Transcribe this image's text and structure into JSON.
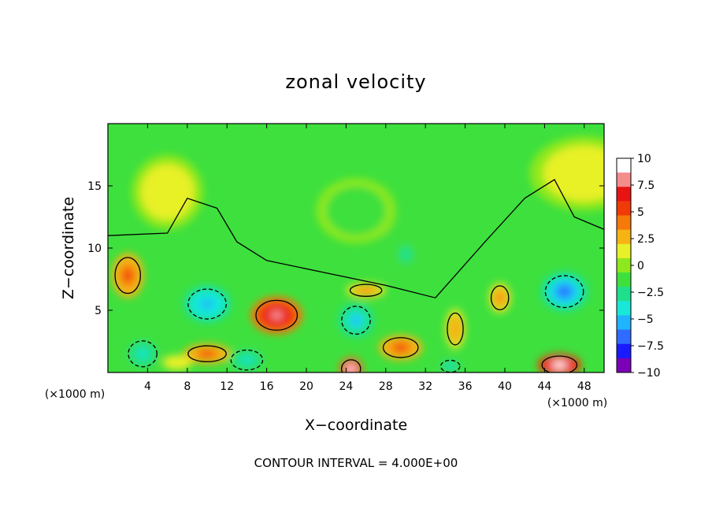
{
  "chart_data": {
    "type": "heatmap",
    "title": "zonal velocity",
    "xlabel": "X−coordinate",
    "ylabel": "Z−coordinate",
    "x_units_left": "(×1000 m)",
    "x_units_right": "(×1000 m)",
    "xlim": [
      0,
      50
    ],
    "ylim": [
      0,
      20
    ],
    "x_ticks": [
      4,
      8,
      12,
      16,
      20,
      24,
      28,
      32,
      36,
      40,
      44,
      48
    ],
    "x_tick_labels": [
      "4",
      "8",
      "12",
      "16",
      "20",
      "24",
      "28",
      "32",
      "36",
      "40",
      "44",
      "48"
    ],
    "y_ticks": [
      5,
      10,
      15
    ],
    "y_tick_labels": [
      "5",
      "10",
      "15"
    ],
    "colorbar": {
      "min": -10,
      "max": 10,
      "tick_values": [
        10,
        7.5,
        5,
        2.5,
        0,
        -2.5,
        -5,
        -7.5,
        -10
      ],
      "tick_labels": [
        "10",
        "7.5",
        "5",
        "2.5",
        "0",
        "−2.5",
        "−5",
        "−7.5",
        "−10"
      ],
      "colors": [
        "#7b00b8",
        "#1a1aff",
        "#2f6bff",
        "#1fb4ff",
        "#19e8d8",
        "#1ee08c",
        "#3ee03e",
        "#8ee81e",
        "#e8f028",
        "#f5b414",
        "#f57a0a",
        "#f03a08",
        "#e81414",
        "#f58c8c",
        "#ffffff"
      ]
    },
    "features": [
      {
        "x": 6,
        "z": 14.5,
        "value": 1.5
      },
      {
        "x": 25,
        "z": 13,
        "value": -1.5
      },
      {
        "x": 30,
        "z": 9.5,
        "value": -2.5
      },
      {
        "x": 48,
        "z": 16,
        "value": 1.5
      },
      {
        "x": 2,
        "z": 7.8,
        "value": 5.5
      },
      {
        "x": 10,
        "z": 5.5,
        "value": -6.0
      },
      {
        "x": 17,
        "z": 4.6,
        "value": 8.5
      },
      {
        "x": 10,
        "z": 1.5,
        "value": 5.5
      },
      {
        "x": 25,
        "z": 4.2,
        "value": -5.5
      },
      {
        "x": 26,
        "z": 6.6,
        "value": 4.0
      },
      {
        "x": 29.5,
        "z": 2.0,
        "value": 5.5
      },
      {
        "x": 24.5,
        "z": 0.3,
        "value": 10.5
      },
      {
        "x": 35,
        "z": 3.5,
        "value": 3.5
      },
      {
        "x": 39.5,
        "z": 6.0,
        "value": 4.5
      },
      {
        "x": 46,
        "z": 6.5,
        "value": -7.5
      },
      {
        "x": 45.5,
        "z": 0.6,
        "value": 11.0
      },
      {
        "x": 3.5,
        "z": 1.5,
        "value": -4.0
      },
      {
        "x": 14,
        "z": 1.0,
        "value": -4.0
      },
      {
        "x": 34.5,
        "z": 0.5,
        "value": -4.5
      },
      {
        "x": 7,
        "z": 0.8,
        "value": 2.0
      }
    ]
  },
  "footer": {
    "contour_interval": "CONTOUR INTERVAL = 4.000E+00"
  }
}
